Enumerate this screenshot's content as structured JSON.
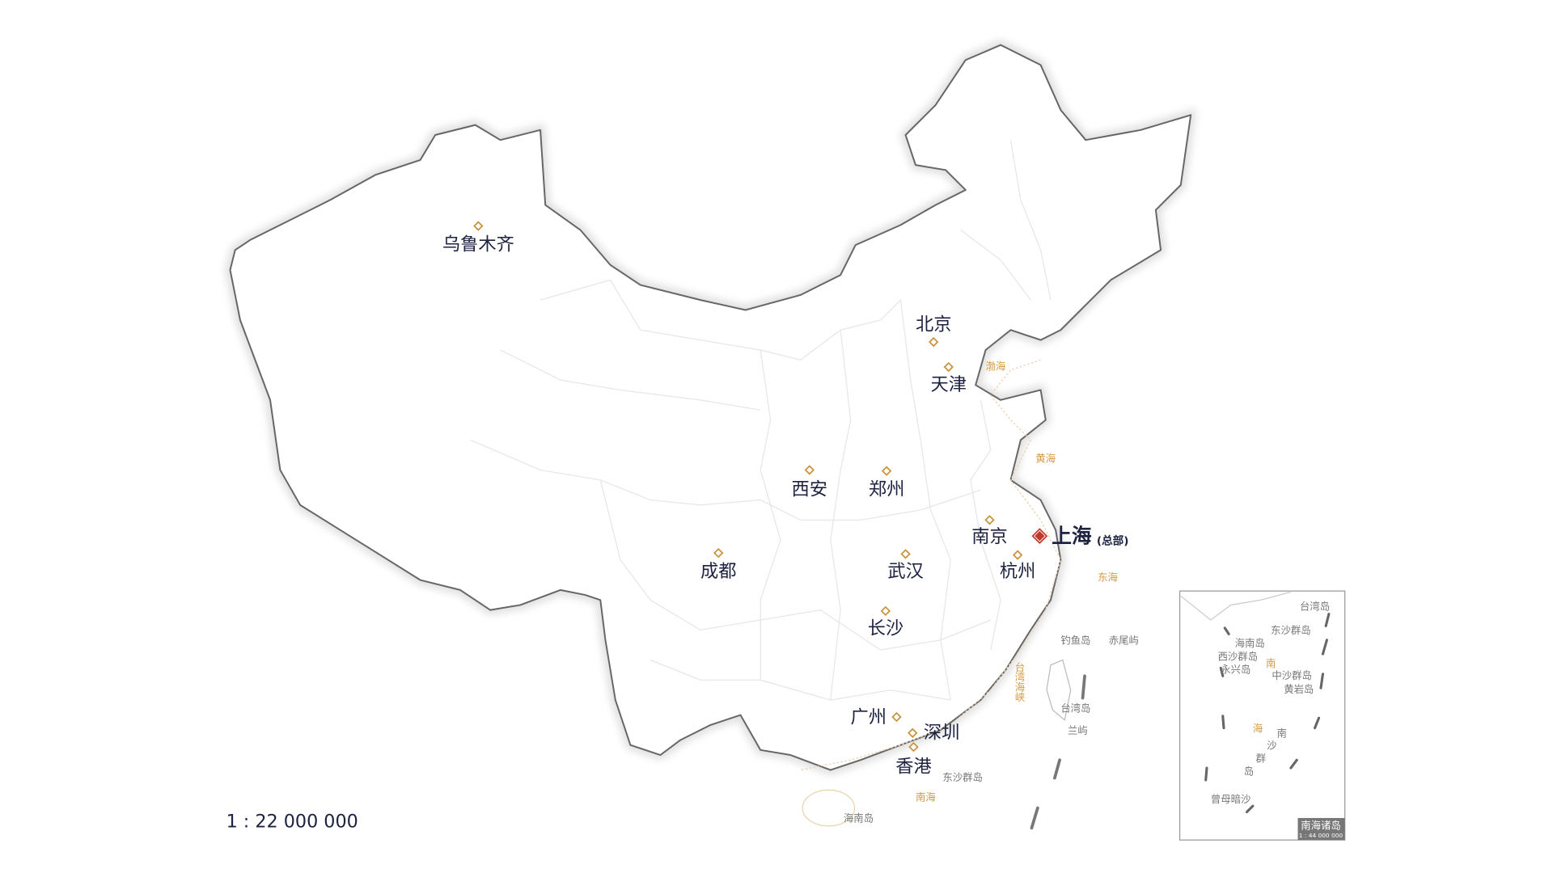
{
  "cities": [
    "乌鲁木齐",
    "北京",
    "天津",
    "西安",
    "郑州",
    "南京",
    "杭州",
    "成都",
    "武汉",
    "长沙",
    "广州",
    "深圳",
    "香港"
  ],
  "headquarters": {
    "name": "上海",
    "note": "(总部)"
  },
  "seas": [
    "渤海",
    "黄海",
    "东海",
    "南海",
    "台湾海峡"
  ],
  "islands": [
    "钓鱼岛",
    "赤尾屿",
    "台湾岛",
    "兰屿",
    "东沙群岛",
    "海南岛"
  ],
  "inset": {
    "labels": [
      "台湾岛",
      "东沙群岛",
      "海南岛",
      "西沙群岛",
      "永兴岛",
      "中沙群岛",
      "黄岩岛",
      "曾母暗沙"
    ],
    "sea_chars": [
      "南",
      "海"
    ],
    "nansha_chars": [
      "南",
      "沙",
      "群",
      "岛"
    ],
    "title": "南海诸岛",
    "scale": "1 : 44 000 000"
  },
  "scale": "1 : 22 000 000"
}
